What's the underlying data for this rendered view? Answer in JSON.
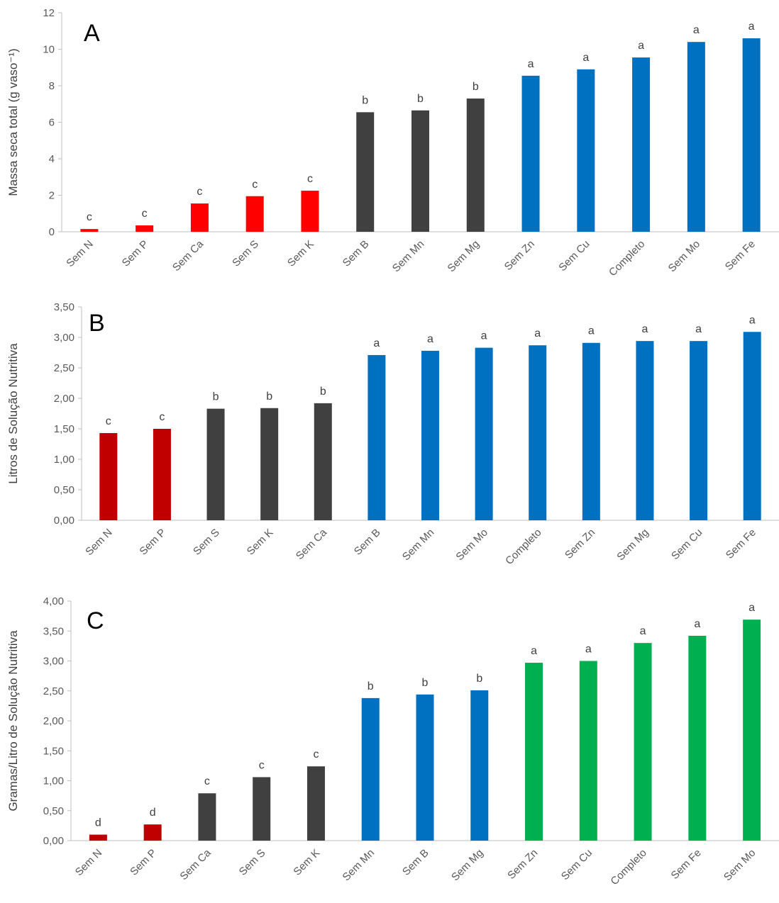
{
  "header_fragment": "",
  "colors": {
    "red": "#ff0000",
    "darkred": "#c00000",
    "dark": "#404040",
    "blue": "#0070c0",
    "green": "#00b050",
    "axis": "#bfbfbf",
    "text": "#595959"
  },
  "chart_data": [
    {
      "type": "bar",
      "panel_label": "A",
      "ylabel": "Massa seca total (g vaso⁻¹)",
      "ylim": [
        0,
        12
      ],
      "ticks": [
        0,
        2,
        4,
        6,
        8,
        10,
        12
      ],
      "tick_labels": [
        "0",
        "2",
        "4",
        "6",
        "8",
        "10",
        "12"
      ],
      "categories": [
        "Sem N",
        "Sem P",
        "Sem Ca",
        "Sem S",
        "Sem K",
        "Sem B",
        "Sem Mn",
        "Sem Mg",
        "Sem Zn",
        "Sem Cu",
        "Completo",
        "Sem Mo",
        "Sem Fe"
      ],
      "values": [
        0.15,
        0.35,
        1.55,
        1.95,
        2.25,
        6.55,
        6.65,
        7.3,
        8.55,
        8.9,
        9.55,
        10.4,
        10.6
      ],
      "letters": [
        "c",
        "c",
        "c",
        "c",
        "c",
        "b",
        "b",
        "b",
        "a",
        "a",
        "a",
        "a",
        "a"
      ],
      "bar_colors": [
        "#ff0000",
        "#ff0000",
        "#ff0000",
        "#ff0000",
        "#ff0000",
        "#404040",
        "#404040",
        "#404040",
        "#0070c0",
        "#0070c0",
        "#0070c0",
        "#0070c0",
        "#0070c0"
      ],
      "grid": false
    },
    {
      "type": "bar",
      "panel_label": "B",
      "ylabel": "Litros de Solução Nutritiva",
      "ylim": [
        0,
        3.5
      ],
      "ticks": [
        0,
        0.5,
        1,
        1.5,
        2,
        2.5,
        3,
        3.5
      ],
      "tick_labels": [
        "0,00",
        "0,50",
        "1,00",
        "1,50",
        "2,00",
        "2,50",
        "3,00",
        "3,50"
      ],
      "categories": [
        "Sem N",
        "Sem P",
        "Sem S",
        "Sem K",
        "Sem Ca",
        "Sem B",
        "Sem Mn",
        "Sem Mo",
        "Completo",
        "Sem Zn",
        "Sem Mg",
        "Sem Cu",
        "Sem Fe"
      ],
      "values": [
        1.43,
        1.5,
        1.83,
        1.84,
        1.92,
        2.71,
        2.78,
        2.83,
        2.87,
        2.91,
        2.94,
        2.94,
        3.09
      ],
      "letters": [
        "c",
        "c",
        "b",
        "b",
        "b",
        "a",
        "a",
        "a",
        "a",
        "a",
        "a",
        "a",
        "a"
      ],
      "bar_colors": [
        "#c00000",
        "#c00000",
        "#404040",
        "#404040",
        "#404040",
        "#0070c0",
        "#0070c0",
        "#0070c0",
        "#0070c0",
        "#0070c0",
        "#0070c0",
        "#0070c0",
        "#0070c0"
      ],
      "grid": false
    },
    {
      "type": "bar",
      "panel_label": "C",
      "ylabel": "Gramas/Litro de Solução Nutritiva",
      "ylim": [
        0,
        4
      ],
      "ticks": [
        0,
        0.5,
        1,
        1.5,
        2,
        2.5,
        3,
        3.5,
        4
      ],
      "tick_labels": [
        "0,00",
        "0,50",
        "1,00",
        "1,50",
        "2,00",
        "2,50",
        "3,00",
        "3,50",
        "4,00"
      ],
      "categories": [
        "Sem N",
        "Sem P",
        "Sem Ca",
        "Sem S",
        "Sem K",
        "Sem Mn",
        "Sem B",
        "Sem Mg",
        "Sem Zn",
        "Sem Cu",
        "Completo",
        "Sem Fe",
        "Sem Mo"
      ],
      "values": [
        0.1,
        0.27,
        0.79,
        1.06,
        1.24,
        2.38,
        2.44,
        2.51,
        2.97,
        3.0,
        3.3,
        3.42,
        3.69
      ],
      "letters": [
        "d",
        "d",
        "c",
        "c",
        "c",
        "b",
        "b",
        "b",
        "a",
        "a",
        "a",
        "a",
        "a"
      ],
      "bar_colors": [
        "#c00000",
        "#c00000",
        "#404040",
        "#404040",
        "#404040",
        "#0070c0",
        "#0070c0",
        "#0070c0",
        "#00b050",
        "#00b050",
        "#00b050",
        "#00b050",
        "#00b050"
      ],
      "grid": false
    }
  ]
}
